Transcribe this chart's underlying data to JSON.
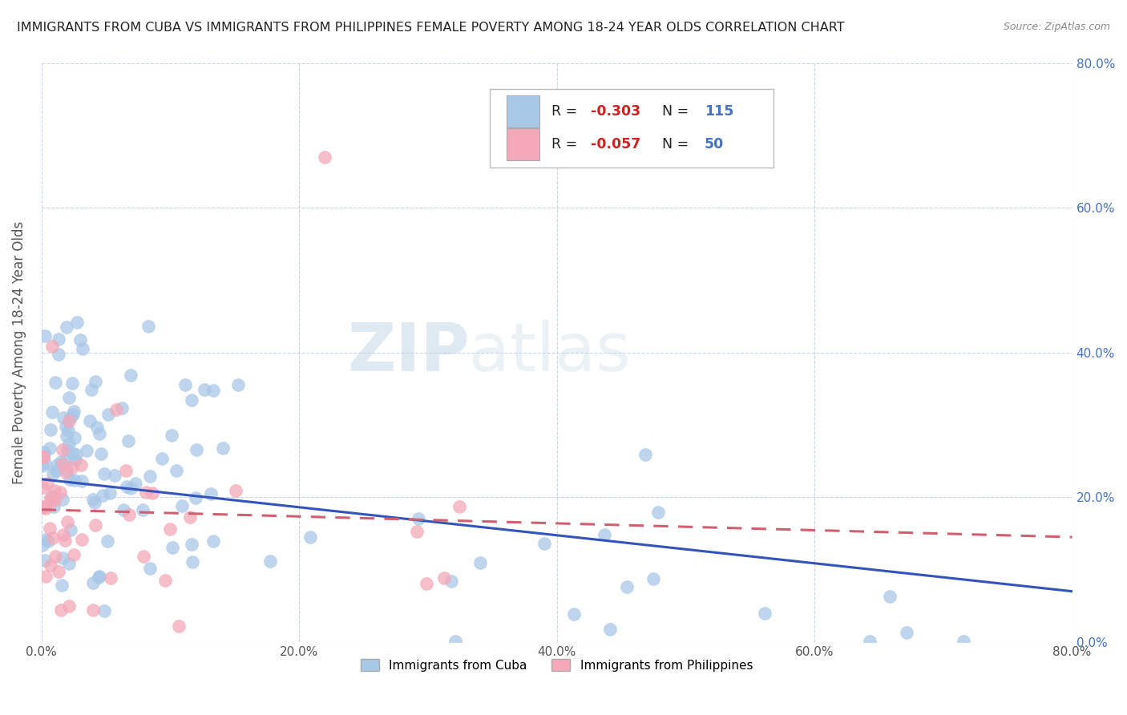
{
  "title": "IMMIGRANTS FROM CUBA VS IMMIGRANTS FROM PHILIPPINES FEMALE POVERTY AMONG 18-24 YEAR OLDS CORRELATION CHART",
  "source": "Source: ZipAtlas.com",
  "ylabel": "Female Poverty Among 18-24 Year Olds",
  "xlim": [
    0.0,
    0.8
  ],
  "ylim": [
    0.0,
    0.8
  ],
  "xticks": [
    0.0,
    0.2,
    0.4,
    0.6,
    0.8
  ],
  "yticks": [
    0.0,
    0.2,
    0.4,
    0.6,
    0.8
  ],
  "xticklabels": [
    "0.0%",
    "20.0%",
    "40.0%",
    "60.0%",
    "80.0%"
  ],
  "yticklabels": [
    "0.0%",
    "20.0%",
    "40.0%",
    "60.0%",
    "80.0%"
  ],
  "cuba_color": "#a8c8e8",
  "philippines_color": "#f4a8b8",
  "cuba_line_color": "#3355bb",
  "philippines_line_color": "#d06070",
  "legend_bottom_cuba": "Immigrants from Cuba",
  "legend_bottom_phil": "Immigrants from Philippines",
  "watermark_zip": "ZIP",
  "watermark_atlas": "atlas",
  "cuba_R": -0.303,
  "cuba_N": 115,
  "phil_R": -0.057,
  "phil_N": 50,
  "background_color": "#ffffff",
  "grid_color": "#c8d4e8",
  "title_color": "#222222",
  "axis_label_color": "#555555",
  "tick_label_color_right": "#4472c4",
  "legend_R_color": "#cc2222",
  "legend_N_color": "#4472c4"
}
